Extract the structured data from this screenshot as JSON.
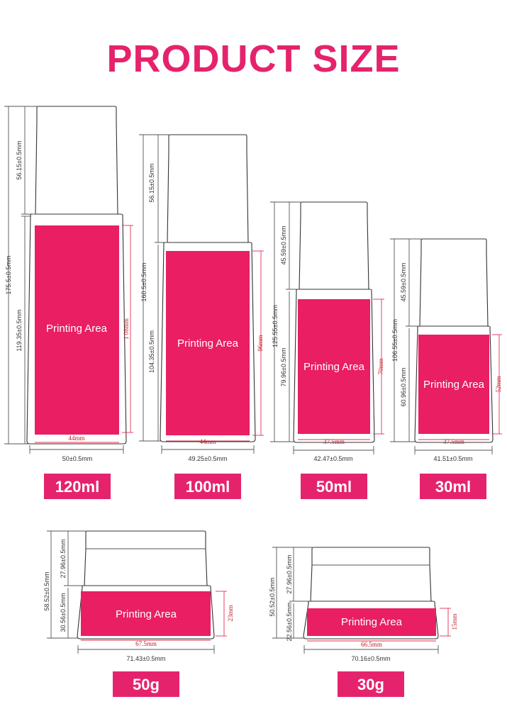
{
  "title": "PRODUCT SIZE",
  "printing_area_label": "Printing Area",
  "colors": {
    "accent": "#e5236d",
    "print_area": "#e91e63",
    "dim_red": "#c0202a"
  },
  "products": [
    {
      "label": "120ml",
      "total_height": "175.5±0.5mm",
      "cap_height": "56.15±0.5mm",
      "body_height": "119.35±0.5mm",
      "width": "50±0.5mm",
      "print_width": "44mm",
      "print_height": "1 08mm"
    },
    {
      "label": "100ml",
      "total_height": "160.5±0.5mm",
      "cap_height": "56.15±0.5mm",
      "body_height": "104.35±0.5mm",
      "width": "49.25±0.5mm",
      "print_width": "44mm",
      "print_height": "96mm"
    },
    {
      "label": "50ml",
      "total_height": "125.55±0.5mm",
      "cap_height": "45.59±0.5mm",
      "body_height": "79.96±0.5mm",
      "width": "42.47±0.5mm",
      "print_width": "37.5mm",
      "print_height": "70mm"
    },
    {
      "label": "30ml",
      "total_height": "106.55±0.5mm",
      "cap_height": "45.59±0.5mm",
      "body_height": "60.96±0.5mm",
      "width": "41.51±0.5mm",
      "print_width": "37.5mm",
      "print_height": "52mm"
    },
    {
      "label": "50g",
      "total_height": "58.52±0.5mm",
      "cap_height": "27.96±0.5mm",
      "body_height": "30.56±0.5mm",
      "width": "71.43±0.5mm",
      "print_width": "67.5mm",
      "print_height": "23mm"
    },
    {
      "label": "30g",
      "total_height": "50.52±0.5mm",
      "cap_height": "27.96±0.5mm",
      "body_height": "22.56±0.5mm",
      "width": "70.16±0.5mm",
      "print_width": "66.5mm",
      "print_height": "15mm"
    }
  ]
}
